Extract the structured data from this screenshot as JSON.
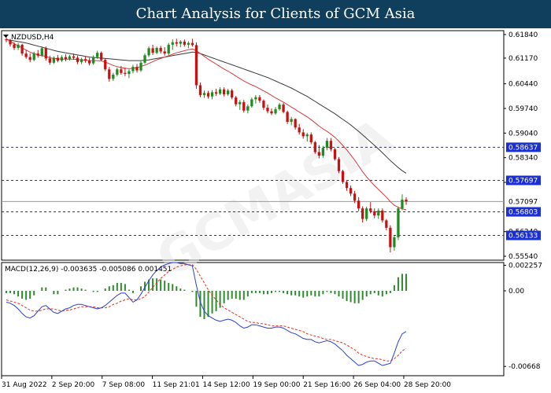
{
  "header": {
    "title": "Chart Analysis for Clients of GCM Asia"
  },
  "colors": {
    "bull": "#1f8a1f",
    "bear": "#c81010",
    "sma_fast": "#d83a3a",
    "sma_slow": "#3a3a3a",
    "level_line": "#1a2fd6",
    "level_label_bg": "#1a2fd6",
    "current_line": "#9a9a9a",
    "macd_line": "#2a3fd8",
    "signal_line": "#e03020",
    "histogram": "#2e8b2e",
    "axis_text": "#000000"
  },
  "chart_data": [
    {
      "type": "candlestick",
      "title": "NZDUSD,H4",
      "ylim": [
        0.5543,
        0.6195
      ],
      "y_ticks": [
        "0.61840",
        "0.61170",
        "0.60440",
        "0.59740",
        "0.59040",
        "0.58340",
        "0.57640",
        "0.56240",
        "0.55540"
      ],
      "current_price": "0.57097",
      "levels": [
        "0.58637",
        "0.57697",
        "0.56803",
        "0.56133"
      ],
      "ohlc": [
        [
          0.617,
          0.6176,
          0.6162,
          0.6168
        ],
        [
          0.6168,
          0.6172,
          0.615,
          0.6156
        ],
        [
          0.6156,
          0.6162,
          0.614,
          0.6146
        ],
        [
          0.6146,
          0.616,
          0.614,
          0.6155
        ],
        [
          0.6155,
          0.6158,
          0.6124,
          0.613
        ],
        [
          0.613,
          0.614,
          0.6115,
          0.612
        ],
        [
          0.612,
          0.613,
          0.6105,
          0.6112
        ],
        [
          0.6112,
          0.6135,
          0.6108,
          0.613
        ],
        [
          0.613,
          0.614,
          0.6118,
          0.6124
        ],
        [
          0.6124,
          0.615,
          0.612,
          0.6145
        ],
        [
          0.6145,
          0.615,
          0.611,
          0.6116
        ],
        [
          0.6116,
          0.6124,
          0.6098,
          0.6104
        ],
        [
          0.6104,
          0.6122,
          0.61,
          0.6118
        ],
        [
          0.6118,
          0.6126,
          0.6105,
          0.611
        ],
        [
          0.611,
          0.6125,
          0.6106,
          0.612
        ],
        [
          0.612,
          0.6128,
          0.6108,
          0.6114
        ],
        [
          0.6114,
          0.6126,
          0.611,
          0.6122
        ],
        [
          0.6122,
          0.613,
          0.6112,
          0.6118
        ],
        [
          0.6118,
          0.6124,
          0.61,
          0.6106
        ],
        [
          0.6106,
          0.6118,
          0.61,
          0.6114
        ],
        [
          0.6114,
          0.6122,
          0.6104,
          0.611
        ],
        [
          0.611,
          0.6118,
          0.6096,
          0.6102
        ],
        [
          0.6102,
          0.6125,
          0.6098,
          0.612
        ],
        [
          0.612,
          0.6138,
          0.6115,
          0.6132
        ],
        [
          0.6132,
          0.6136,
          0.6108,
          0.6112
        ],
        [
          0.6112,
          0.6116,
          0.608,
          0.6085
        ],
        [
          0.6085,
          0.6092,
          0.605,
          0.6058
        ],
        [
          0.6058,
          0.6075,
          0.6052,
          0.607
        ],
        [
          0.607,
          0.609,
          0.6065,
          0.6085
        ],
        [
          0.6085,
          0.6095,
          0.607,
          0.6075
        ],
        [
          0.6075,
          0.609,
          0.6066,
          0.6072
        ],
        [
          0.6072,
          0.6085,
          0.606,
          0.608
        ],
        [
          0.608,
          0.6098,
          0.6074,
          0.6092
        ],
        [
          0.6092,
          0.61,
          0.6076,
          0.6082
        ],
        [
          0.6082,
          0.6108,
          0.6078,
          0.6104
        ],
        [
          0.6104,
          0.613,
          0.61,
          0.6125
        ],
        [
          0.6125,
          0.615,
          0.612,
          0.6145
        ],
        [
          0.6145,
          0.6155,
          0.6126,
          0.6132
        ],
        [
          0.6132,
          0.615,
          0.6128,
          0.6146
        ],
        [
          0.6146,
          0.6152,
          0.613,
          0.6136
        ],
        [
          0.6136,
          0.6148,
          0.6124,
          0.613
        ],
        [
          0.613,
          0.616,
          0.6126,
          0.6155
        ],
        [
          0.6155,
          0.617,
          0.614,
          0.6162
        ],
        [
          0.6162,
          0.6172,
          0.615,
          0.6158
        ],
        [
          0.6158,
          0.6168,
          0.6148,
          0.6164
        ],
        [
          0.6164,
          0.617,
          0.615,
          0.6155
        ],
        [
          0.6155,
          0.6165,
          0.6145,
          0.616
        ],
        [
          0.616,
          0.6172,
          0.615,
          0.6154
        ],
        [
          0.6154,
          0.6162,
          0.603,
          0.604
        ],
        [
          0.604,
          0.6048,
          0.6006,
          0.6012
        ],
        [
          0.6012,
          0.6025,
          0.6004,
          0.6018
        ],
        [
          0.6018,
          0.6024,
          0.6002,
          0.6008
        ],
        [
          0.6008,
          0.6026,
          0.6,
          0.602
        ],
        [
          0.602,
          0.603,
          0.601,
          0.6016
        ],
        [
          0.6016,
          0.6034,
          0.6012,
          0.6028
        ],
        [
          0.6028,
          0.6034,
          0.6008,
          0.6014
        ],
        [
          0.6014,
          0.603,
          0.601,
          0.6025
        ],
        [
          0.6025,
          0.603,
          0.6,
          0.6005
        ],
        [
          0.6005,
          0.601,
          0.598,
          0.5986
        ],
        [
          0.5986,
          0.5998,
          0.597,
          0.5992
        ],
        [
          0.5992,
          0.5998,
          0.5962,
          0.5968
        ],
        [
          0.5968,
          0.5985,
          0.596,
          0.598
        ],
        [
          0.598,
          0.6005,
          0.5976,
          0.6
        ],
        [
          0.6,
          0.6012,
          0.5988,
          0.6006
        ],
        [
          0.6006,
          0.6012,
          0.599,
          0.5996
        ],
        [
          0.5996,
          0.6,
          0.597,
          0.5976
        ],
        [
          0.5976,
          0.5985,
          0.596,
          0.5966
        ],
        [
          0.5966,
          0.5974,
          0.5955,
          0.596
        ],
        [
          0.596,
          0.5978,
          0.5956,
          0.5972
        ],
        [
          0.5972,
          0.599,
          0.5968,
          0.5985
        ],
        [
          0.5985,
          0.599,
          0.596,
          0.5964
        ],
        [
          0.5964,
          0.5968,
          0.593,
          0.5936
        ],
        [
          0.5936,
          0.595,
          0.5926,
          0.5944
        ],
        [
          0.5944,
          0.5946,
          0.5914,
          0.592
        ],
        [
          0.592,
          0.593,
          0.59,
          0.5906
        ],
        [
          0.5906,
          0.5915,
          0.5888,
          0.5895
        ],
        [
          0.5895,
          0.5905,
          0.588,
          0.59
        ],
        [
          0.59,
          0.5906,
          0.5872,
          0.5878
        ],
        [
          0.5878,
          0.5882,
          0.5845,
          0.585
        ],
        [
          0.585,
          0.587,
          0.5832,
          0.584
        ],
        [
          0.584,
          0.5868,
          0.5834,
          0.5862
        ],
        [
          0.5862,
          0.589,
          0.5855,
          0.5882
        ],
        [
          0.5882,
          0.589,
          0.5852,
          0.5858
        ],
        [
          0.5858,
          0.5862,
          0.5826,
          0.583
        ],
        [
          0.583,
          0.5836,
          0.579,
          0.5796
        ],
        [
          0.5796,
          0.58,
          0.576,
          0.5765
        ],
        [
          0.5765,
          0.577,
          0.574,
          0.5748
        ],
        [
          0.5748,
          0.5755,
          0.5725,
          0.5732
        ],
        [
          0.5732,
          0.574,
          0.5705,
          0.5712
        ],
        [
          0.5712,
          0.5722,
          0.5682,
          0.569
        ],
        [
          0.569,
          0.5696,
          0.565,
          0.566
        ],
        [
          0.566,
          0.5695,
          0.5654,
          0.569
        ],
        [
          0.569,
          0.5708,
          0.5676,
          0.5682
        ],
        [
          0.5682,
          0.569,
          0.5662,
          0.567
        ],
        [
          0.567,
          0.569,
          0.566,
          0.5684
        ],
        [
          0.5684,
          0.569,
          0.565,
          0.5656
        ],
        [
          0.5656,
          0.566,
          0.5628,
          0.5635
        ],
        [
          0.5635,
          0.5642,
          0.5565,
          0.558
        ],
        [
          0.558,
          0.5612,
          0.557,
          0.5608
        ],
        [
          0.5608,
          0.5695,
          0.56,
          0.569
        ],
        [
          0.569,
          0.573,
          0.5685,
          0.5715
        ],
        [
          0.5715,
          0.5722,
          0.57,
          0.571
        ]
      ],
      "sma_fast": [
        0.6172,
        0.6165,
        0.6158,
        0.6152,
        0.6146,
        0.614,
        0.6134,
        0.613,
        0.6126,
        0.6124,
        0.6122,
        0.6118,
        0.6116,
        0.6115,
        0.6114,
        0.6114,
        0.6114,
        0.6114,
        0.6113,
        0.6112,
        0.6111,
        0.611,
        0.611,
        0.611,
        0.6109,
        0.6106,
        0.6101,
        0.6096,
        0.6093,
        0.609,
        0.6088,
        0.6087,
        0.6088,
        0.609,
        0.6093,
        0.6097,
        0.6102,
        0.6107,
        0.6112,
        0.6116,
        0.612,
        0.6124,
        0.6128,
        0.6132,
        0.6135,
        0.6138,
        0.6141,
        0.6143,
        0.6138,
        0.613,
        0.6122,
        0.6114,
        0.6107,
        0.61,
        0.6093,
        0.6086,
        0.608,
        0.6073,
        0.6066,
        0.6059,
        0.6052,
        0.6046,
        0.6041,
        0.6036,
        0.603,
        0.6024,
        0.6018,
        0.6011,
        0.6004,
        0.5998,
        0.5992,
        0.5985,
        0.5978,
        0.5971,
        0.5964,
        0.5957,
        0.595,
        0.5942,
        0.5933,
        0.5924,
        0.5916,
        0.5909,
        0.5901,
        0.5892,
        0.5881,
        0.5869,
        0.5856,
        0.5842,
        0.5827,
        0.5811,
        0.5794,
        0.578,
        0.5767,
        0.5755,
        0.5744,
        0.5733,
        0.5722,
        0.5709,
        0.5699,
        0.5693,
        0.5689,
        0.5686
      ],
      "sma_slow": [
        0.617,
        0.6168,
        0.6166,
        0.6164,
        0.6162,
        0.616,
        0.6157,
        0.6154,
        0.6151,
        0.6148,
        0.6145,
        0.6142,
        0.6139,
        0.6136,
        0.6134,
        0.6132,
        0.613,
        0.6128,
        0.6126,
        0.6124,
        0.6122,
        0.612,
        0.6119,
        0.6118,
        0.6117,
        0.6116,
        0.6115,
        0.6114,
        0.6113,
        0.6112,
        0.6111,
        0.611,
        0.611,
        0.611,
        0.611,
        0.6111,
        0.6112,
        0.6114,
        0.6116,
        0.6118,
        0.612,
        0.6122,
        0.6124,
        0.6126,
        0.6128,
        0.613,
        0.6132,
        0.6134,
        0.6133,
        0.613,
        0.6126,
        0.6122,
        0.6118,
        0.6114,
        0.611,
        0.6106,
        0.6102,
        0.6098,
        0.6094,
        0.609,
        0.6086,
        0.6082,
        0.6078,
        0.6074,
        0.607,
        0.6066,
        0.6062,
        0.6057,
        0.6052,
        0.6047,
        0.6042,
        0.6037,
        0.6032,
        0.6026,
        0.602,
        0.6014,
        0.6008,
        0.6001,
        0.5994,
        0.5987,
        0.598,
        0.5973,
        0.5966,
        0.5959,
        0.5951,
        0.5943,
        0.5935,
        0.5927,
        0.5918,
        0.5909,
        0.5899,
        0.5889,
        0.5879,
        0.5869,
        0.5859,
        0.5848,
        0.5837,
        0.5826,
        0.5816,
        0.5806,
        0.5797,
        0.579
      ],
      "x_ticks": [
        {
          "label": "31 Aug 2022",
          "index": 0
        },
        {
          "label": "2 Sep 20:00",
          "index": 16
        },
        {
          "label": "7 Sep 08:00",
          "index": 32
        },
        {
          "label": "11 Sep 21:01",
          "index": 48
        },
        {
          "label": "14 Sep 12:00",
          "index": 64
        },
        {
          "label": "19 Sep 00:00",
          "index": 80
        },
        {
          "label": "21 Sep 16:00",
          "index": 96
        },
        {
          "label": "26 Sep 04:00",
          "index": 112
        },
        {
          "label": "28 Sep 20:00",
          "index": 128
        }
      ]
    },
    {
      "type": "macd",
      "title": "MACD(12,26,9) -0.003635 -0.005086 0.001451",
      "params": "12,26,9",
      "values": {
        "macd": -0.003635,
        "signal": -0.005086,
        "histogram": 0.001451
      },
      "ylim": [
        -0.0075,
        0.0025
      ],
      "y_ticks": [
        "0.002257",
        "0.00",
        "-0.00668"
      ],
      "macd": [
        -0.001,
        -0.0011,
        -0.0013,
        -0.0016,
        -0.002,
        -0.0023,
        -0.0024,
        -0.0022,
        -0.0018,
        -0.0014,
        -0.0013,
        -0.0016,
        -0.0019,
        -0.002,
        -0.0018,
        -0.0016,
        -0.0015,
        -0.0013,
        -0.0012,
        -0.0012,
        -0.0013,
        -0.0014,
        -0.0015,
        -0.0016,
        -0.0015,
        -0.0013,
        -0.001,
        -0.0007,
        -0.0004,
        -0.0002,
        -0.0002,
        -0.0006,
        -0.001,
        -0.0008,
        -0.0003,
        0.0003,
        0.0009,
        0.0014,
        0.0018,
        0.0021,
        0.0023,
        0.0024,
        0.0025,
        0.0025,
        0.0024,
        0.0024,
        0.0023,
        0.0022,
        0.0005,
        -0.001,
        -0.0018,
        -0.0022,
        -0.0024,
        -0.0026,
        -0.0027,
        -0.0026,
        -0.0025,
        -0.0026,
        -0.0028,
        -0.0031,
        -0.0033,
        -0.0032,
        -0.003,
        -0.003,
        -0.0031,
        -0.0032,
        -0.0033,
        -0.0033,
        -0.0032,
        -0.0032,
        -0.0033,
        -0.0035,
        -0.0037,
        -0.0038,
        -0.004,
        -0.0042,
        -0.0043,
        -0.0043,
        -0.0045,
        -0.0046,
        -0.0045,
        -0.0044,
        -0.0045,
        -0.0047,
        -0.005,
        -0.0053,
        -0.0057,
        -0.006,
        -0.0063,
        -0.0066,
        -0.0065,
        -0.0063,
        -0.0062,
        -0.0062,
        -0.0064,
        -0.0066,
        -0.0065,
        -0.0064,
        -0.0055,
        -0.0045,
        -0.0038,
        -0.0036
      ],
      "signal": [
        -0.0008,
        -0.0009,
        -0.001,
        -0.0011,
        -0.0013,
        -0.0015,
        -0.0017,
        -0.0018,
        -0.0018,
        -0.0017,
        -0.0016,
        -0.0016,
        -0.0016,
        -0.0017,
        -0.0018,
        -0.0017,
        -0.0017,
        -0.0016,
        -0.0015,
        -0.0014,
        -0.0014,
        -0.0014,
        -0.0014,
        -0.0015,
        -0.0015,
        -0.0015,
        -0.0014,
        -0.0012,
        -0.0011,
        -0.0009,
        -0.0008,
        -0.0007,
        -0.0008,
        -0.0008,
        -0.0007,
        -0.0005,
        -0.0001,
        0.0003,
        0.0007,
        0.0011,
        0.0014,
        0.0017,
        0.0019,
        0.0021,
        0.0022,
        0.0023,
        0.0023,
        0.0023,
        0.0019,
        0.0013,
        0.0007,
        0.0001,
        -0.0004,
        -0.0008,
        -0.0012,
        -0.0015,
        -0.0017,
        -0.0019,
        -0.0021,
        -0.0023,
        -0.0025,
        -0.0027,
        -0.0028,
        -0.0028,
        -0.0029,
        -0.0029,
        -0.003,
        -0.0031,
        -0.0031,
        -0.0031,
        -0.0031,
        -0.0032,
        -0.0033,
        -0.0034,
        -0.0035,
        -0.0036,
        -0.0038,
        -0.0039,
        -0.004,
        -0.0041,
        -0.0042,
        -0.0043,
        -0.0043,
        -0.0044,
        -0.0045,
        -0.0046,
        -0.0048,
        -0.005,
        -0.0052,
        -0.0055,
        -0.0057,
        -0.0058,
        -0.0059,
        -0.006,
        -0.006,
        -0.0061,
        -0.0062,
        -0.0062,
        -0.006,
        -0.0057,
        -0.0053,
        -0.0051
      ]
    }
  ],
  "watermark": "GCMASIA"
}
